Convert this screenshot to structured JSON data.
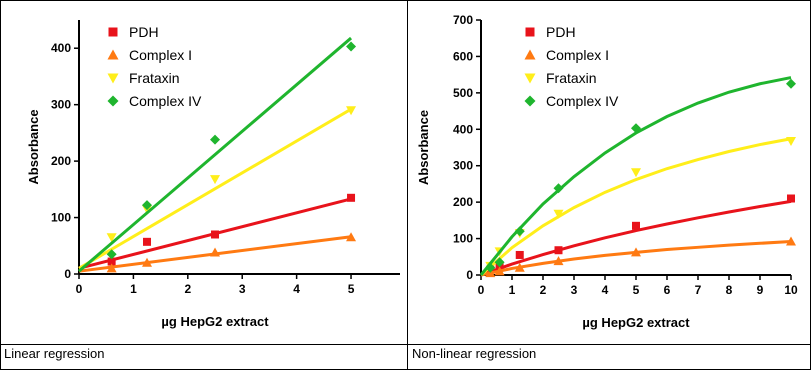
{
  "colors": {
    "PDH": "#e8131b",
    "Complex I": "#ff7a12",
    "Frataxin": "#ffee1a",
    "Complex IV": "#1fb52e"
  },
  "captions": {
    "left": "Linear regression",
    "right": "Non-linear regression"
  },
  "chart_data": [
    {
      "type": "scatter",
      "title": "",
      "xlabel": "µg HepG2 extract",
      "ylabel": "Absorbance",
      "xlim": [
        0,
        5.9
      ],
      "ylim": [
        0,
        450
      ],
      "xticks": [
        0,
        1,
        2,
        3,
        4,
        5
      ],
      "yticks": [
        0,
        100,
        200,
        300,
        400
      ],
      "fit": "linear",
      "legend_position": "top-left",
      "series": [
        {
          "name": "PDH",
          "marker": "square",
          "points": [
            [
              0.6,
              22
            ],
            [
              1.25,
              57
            ],
            [
              2.5,
              70
            ],
            [
              5,
              135
            ]
          ],
          "fit_line": [
            [
              0,
              10
            ],
            [
              5,
              133
            ]
          ]
        },
        {
          "name": "Complex I",
          "marker": "triangle-up",
          "points": [
            [
              0.6,
              10
            ],
            [
              1.25,
              20
            ],
            [
              2.5,
              38
            ],
            [
              5,
              65
            ]
          ],
          "fit_line": [
            [
              0,
              5
            ],
            [
              5,
              66
            ]
          ]
        },
        {
          "name": "Frataxin",
          "marker": "triangle-down",
          "points": [
            [
              0.6,
              65
            ],
            [
              1.25,
              115
            ],
            [
              2.5,
              168
            ],
            [
              5,
              290
            ]
          ],
          "fit_line": [
            [
              0,
              10
            ],
            [
              5,
              292
            ]
          ]
        },
        {
          "name": "Complex IV",
          "marker": "diamond",
          "points": [
            [
              0.6,
              35
            ],
            [
              1.25,
              122
            ],
            [
              2.5,
              238
            ],
            [
              5,
              403
            ]
          ],
          "fit_line": [
            [
              0,
              5
            ],
            [
              5,
              418
            ]
          ]
        }
      ]
    },
    {
      "type": "scatter",
      "title": "",
      "xlabel": "µg HepG2 extract",
      "ylabel": "Absorbance",
      "xlim": [
        0,
        10
      ],
      "ylim": [
        0,
        700
      ],
      "xticks": [
        0,
        1,
        2,
        3,
        4,
        5,
        6,
        7,
        8,
        9,
        10
      ],
      "yticks": [
        0,
        100,
        200,
        300,
        400,
        500,
        600,
        700
      ],
      "fit": "non-linear",
      "legend_position": "top-left",
      "series": [
        {
          "name": "PDH",
          "marker": "square",
          "points": [
            [
              0.3,
              15
            ],
            [
              0.6,
              25
            ],
            [
              1.25,
              55
            ],
            [
              2.5,
              68
            ],
            [
              5,
              135
            ],
            [
              10,
              210
            ]
          ],
          "fit_line": [
            [
              0,
              0
            ],
            [
              1,
              30
            ],
            [
              2,
              56
            ],
            [
              3,
              80
            ],
            [
              4,
              102
            ],
            [
              5,
              122
            ],
            [
              6,
              140
            ],
            [
              7,
              157
            ],
            [
              8,
              173
            ],
            [
              9,
              188
            ],
            [
              10,
              202
            ]
          ]
        },
        {
          "name": "Complex I",
          "marker": "triangle-up",
          "points": [
            [
              0.3,
              5
            ],
            [
              0.6,
              10
            ],
            [
              1.25,
              20
            ],
            [
              2.5,
              38
            ],
            [
              5,
              62
            ],
            [
              10,
              92
            ]
          ],
          "fit_line": [
            [
              0,
              0
            ],
            [
              1,
              18
            ],
            [
              2,
              32
            ],
            [
              3,
              44
            ],
            [
              4,
              54
            ],
            [
              5,
              62
            ],
            [
              6,
              70
            ],
            [
              7,
              76
            ],
            [
              8,
              82
            ],
            [
              9,
              87
            ],
            [
              10,
              92
            ]
          ]
        },
        {
          "name": "Frataxin",
          "marker": "triangle-down",
          "points": [
            [
              0.3,
              25
            ],
            [
              0.6,
              65
            ],
            [
              1.25,
              115
            ],
            [
              2.5,
              168
            ],
            [
              5,
              282
            ],
            [
              10,
              368
            ]
          ],
          "fit_line": [
            [
              0,
              0
            ],
            [
              1,
              75
            ],
            [
              2,
              135
            ],
            [
              3,
              185
            ],
            [
              4,
              227
            ],
            [
              5,
              262
            ],
            [
              6,
              292
            ],
            [
              7,
              317
            ],
            [
              8,
              339
            ],
            [
              9,
              358
            ],
            [
              10,
              374
            ]
          ]
        },
        {
          "name": "Complex IV",
          "marker": "diamond",
          "points": [
            [
              0.3,
              20
            ],
            [
              0.6,
              35
            ],
            [
              1.25,
              120
            ],
            [
              2.5,
              238
            ],
            [
              5,
              403
            ],
            [
              10,
              525
            ]
          ],
          "fit_line": [
            [
              0,
              0
            ],
            [
              1,
              105
            ],
            [
              2,
              195
            ],
            [
              3,
              270
            ],
            [
              4,
              335
            ],
            [
              5,
              390
            ],
            [
              6,
              435
            ],
            [
              7,
              472
            ],
            [
              8,
              502
            ],
            [
              9,
              525
            ],
            [
              10,
              542
            ]
          ]
        }
      ]
    }
  ]
}
